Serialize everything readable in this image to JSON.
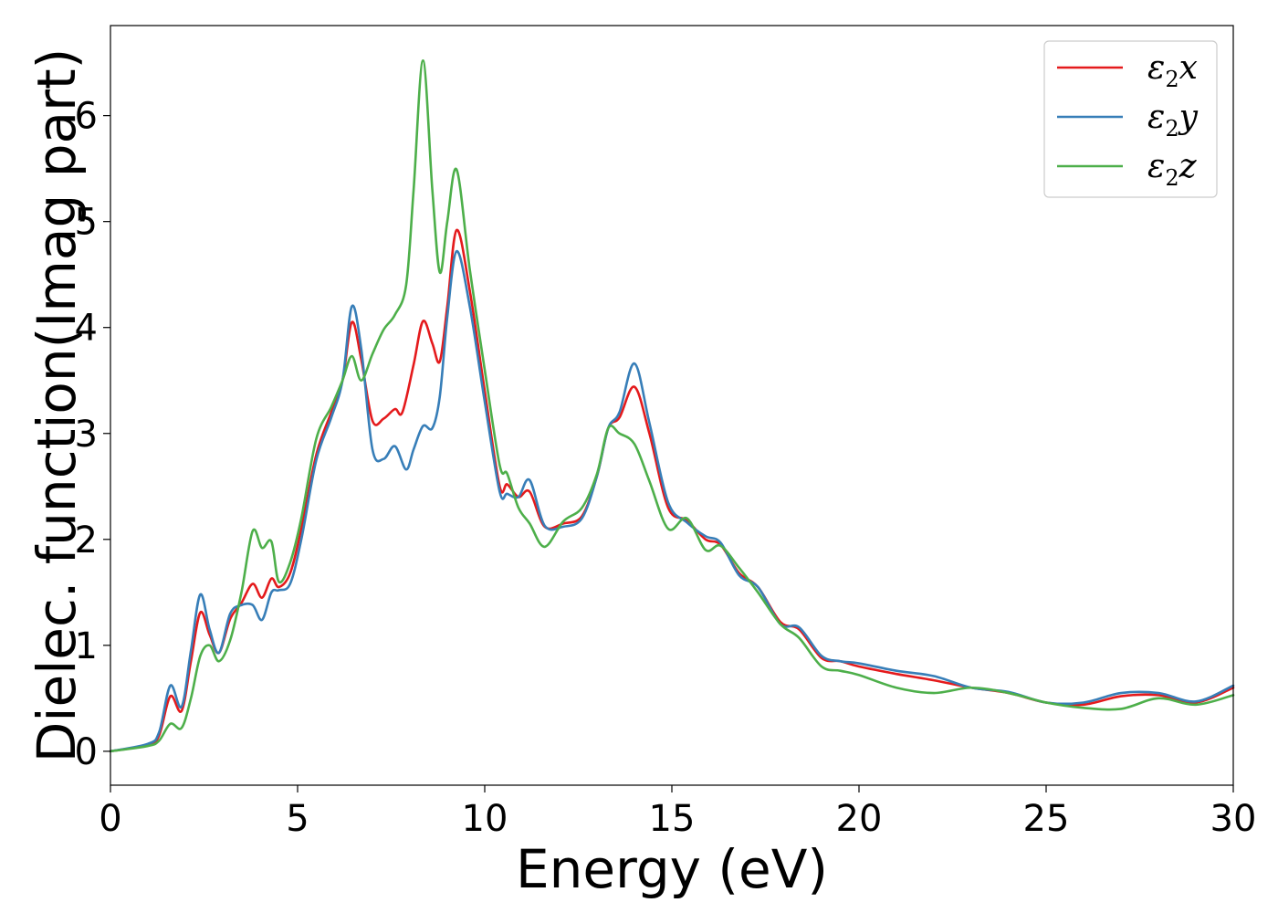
{
  "chart_data": {
    "type": "line",
    "xlabel": "Energy (eV)",
    "ylabel": "Dielec. function(Imag part)",
    "xlim": [
      0,
      30
    ],
    "ylim": [
      -0.32,
      6.85
    ],
    "xticks": [
      0,
      5,
      10,
      15,
      20,
      25,
      30
    ],
    "yticks": [
      0,
      1,
      2,
      3,
      4,
      5,
      6
    ],
    "grid": false,
    "legend_position": "top-right",
    "series": [
      {
        "name": "ε2x",
        "base": "ε",
        "sub": "2",
        "var": "x",
        "color": "#e41a1c",
        "x": [
          0,
          1,
          1.3,
          1.6,
          1.9,
          2.15,
          2.4,
          2.65,
          2.9,
          3.2,
          3.5,
          3.8,
          4.05,
          4.3,
          4.5,
          4.8,
          5.1,
          5.5,
          5.9,
          6.2,
          6.45,
          6.7,
          7.0,
          7.3,
          7.6,
          7.8,
          8.1,
          8.35,
          8.6,
          8.8,
          9.0,
          9.25,
          9.6,
          10.0,
          10.4,
          10.6,
          10.9,
          11.2,
          11.6,
          12.1,
          12.6,
          13.0,
          13.3,
          13.6,
          14.0,
          14.4,
          14.9,
          15.4,
          15.9,
          16.3,
          16.8,
          17.3,
          17.9,
          18.4,
          19.0,
          19.5,
          20.0,
          21.0,
          22.0,
          23.0,
          24.0,
          25.0,
          26.0,
          27.0,
          28.0,
          29.0,
          30.0
        ],
        "y": [
          0,
          0.06,
          0.15,
          0.52,
          0.38,
          0.85,
          1.31,
          1.1,
          0.93,
          1.25,
          1.4,
          1.58,
          1.45,
          1.63,
          1.55,
          1.68,
          2.1,
          2.8,
          3.2,
          3.5,
          4.05,
          3.7,
          3.12,
          3.14,
          3.23,
          3.2,
          3.65,
          4.06,
          3.85,
          3.68,
          4.2,
          4.92,
          4.35,
          3.4,
          2.5,
          2.52,
          2.4,
          2.45,
          2.12,
          2.15,
          2.22,
          2.6,
          3.05,
          3.15,
          3.44,
          3.0,
          2.3,
          2.18,
          2.0,
          1.95,
          1.68,
          1.55,
          1.22,
          1.15,
          0.88,
          0.85,
          0.8,
          0.73,
          0.67,
          0.6,
          0.55,
          0.46,
          0.44,
          0.52,
          0.53,
          0.46,
          0.6
        ]
      },
      {
        "name": "ε2y",
        "base": "ε",
        "sub": "2",
        "var": "y",
        "color": "#377eb8",
        "x": [
          0,
          1,
          1.3,
          1.6,
          1.9,
          2.15,
          2.4,
          2.65,
          2.9,
          3.2,
          3.5,
          3.8,
          4.05,
          4.3,
          4.5,
          4.8,
          5.1,
          5.5,
          5.9,
          6.2,
          6.45,
          6.7,
          7.0,
          7.3,
          7.6,
          7.9,
          8.1,
          8.35,
          8.6,
          8.8,
          9.0,
          9.25,
          9.6,
          10.0,
          10.4,
          10.6,
          10.9,
          11.2,
          11.6,
          12.1,
          12.6,
          13.0,
          13.3,
          13.6,
          14.0,
          14.4,
          14.9,
          15.4,
          15.9,
          16.3,
          16.8,
          17.3,
          17.9,
          18.4,
          19.0,
          19.5,
          20.0,
          21.0,
          22.0,
          23.0,
          24.0,
          25.0,
          26.0,
          27.0,
          28.0,
          29.0,
          30.0
        ],
        "y": [
          0,
          0.07,
          0.18,
          0.62,
          0.42,
          0.95,
          1.48,
          1.15,
          0.93,
          1.3,
          1.38,
          1.38,
          1.24,
          1.5,
          1.52,
          1.58,
          2.0,
          2.75,
          3.15,
          3.5,
          4.2,
          3.8,
          2.85,
          2.76,
          2.88,
          2.66,
          2.85,
          3.07,
          3.05,
          3.35,
          4.1,
          4.72,
          4.2,
          3.3,
          2.45,
          2.43,
          2.4,
          2.56,
          2.13,
          2.12,
          2.2,
          2.6,
          3.05,
          3.2,
          3.66,
          3.1,
          2.35,
          2.16,
          2.03,
          1.97,
          1.66,
          1.55,
          1.2,
          1.17,
          0.9,
          0.85,
          0.83,
          0.76,
          0.71,
          0.6,
          0.56,
          0.46,
          0.46,
          0.55,
          0.55,
          0.47,
          0.62
        ]
      },
      {
        "name": "ε2z",
        "base": "ε",
        "sub": "2",
        "var": "z",
        "color": "#4daf4a",
        "x": [
          0,
          1,
          1.3,
          1.6,
          1.9,
          2.15,
          2.4,
          2.65,
          2.9,
          3.2,
          3.5,
          3.8,
          4.05,
          4.3,
          4.5,
          4.8,
          5.1,
          5.5,
          5.9,
          6.2,
          6.45,
          6.7,
          7.0,
          7.3,
          7.6,
          7.9,
          8.1,
          8.35,
          8.6,
          8.8,
          9.0,
          9.25,
          9.6,
          10.0,
          10.4,
          10.6,
          10.9,
          11.2,
          11.6,
          12.1,
          12.6,
          13.0,
          13.3,
          13.6,
          14.0,
          14.4,
          14.9,
          15.4,
          15.9,
          16.3,
          16.8,
          17.3,
          17.9,
          18.4,
          19.0,
          19.5,
          20.0,
          21.0,
          22.0,
          23.0,
          24.0,
          25.0,
          26.0,
          27.0,
          28.0,
          29.0,
          30.0
        ],
        "y": [
          0,
          0.05,
          0.1,
          0.26,
          0.22,
          0.5,
          0.9,
          1.0,
          0.85,
          1.05,
          1.5,
          2.08,
          1.92,
          1.98,
          1.6,
          1.78,
          2.2,
          2.95,
          3.25,
          3.5,
          3.73,
          3.5,
          3.75,
          3.98,
          4.12,
          4.4,
          5.3,
          6.52,
          5.3,
          4.52,
          5.0,
          5.49,
          4.55,
          3.6,
          2.7,
          2.62,
          2.3,
          2.15,
          1.93,
          2.17,
          2.3,
          2.62,
          3.05,
          3.0,
          2.9,
          2.55,
          2.1,
          2.2,
          1.9,
          1.94,
          1.73,
          1.5,
          1.2,
          1.07,
          0.8,
          0.76,
          0.72,
          0.6,
          0.55,
          0.6,
          0.55,
          0.46,
          0.41,
          0.4,
          0.5,
          0.44,
          0.53
        ]
      }
    ]
  }
}
